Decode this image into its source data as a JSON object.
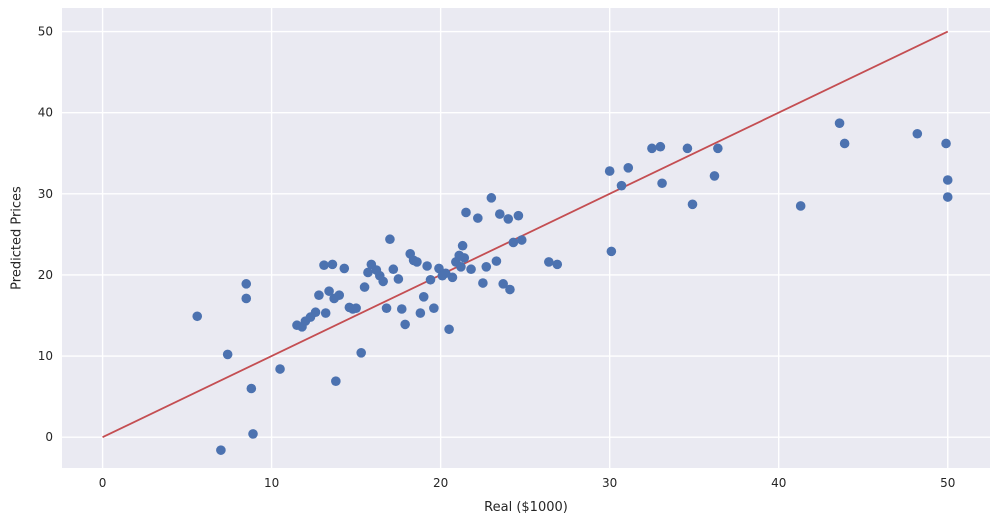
{
  "chart_data": {
    "type": "scatter",
    "title": "",
    "xlabel": "Real ($1000)",
    "ylabel": "Predicted Prices",
    "xlim": [
      -2.4,
      52.5
    ],
    "ylim": [
      -3.8,
      52.9
    ],
    "xticks": [
      0,
      10,
      20,
      30,
      40,
      50
    ],
    "yticks": [
      0,
      10,
      20,
      30,
      40,
      50
    ],
    "grid": true,
    "legend": "none",
    "plot_bg": "#eaeaf2",
    "grid_color": "#ffffff",
    "series": [
      {
        "name": "identity-line",
        "type": "line",
        "color": "#c44e52",
        "points": [
          [
            0,
            0
          ],
          [
            50,
            50
          ]
        ]
      },
      {
        "name": "predicted-vs-real",
        "type": "scatter",
        "color": "#4c72b0",
        "marker_radius": 4.8,
        "points": [
          [
            5.6,
            14.9
          ],
          [
            7.0,
            -1.6
          ],
          [
            7.4,
            10.2
          ],
          [
            8.5,
            18.9
          ],
          [
            8.5,
            17.1
          ],
          [
            8.8,
            6.0
          ],
          [
            8.9,
            0.4
          ],
          [
            10.5,
            8.4
          ],
          [
            11.5,
            13.8
          ],
          [
            11.8,
            13.6
          ],
          [
            12.0,
            14.3
          ],
          [
            12.3,
            14.8
          ],
          [
            12.6,
            15.4
          ],
          [
            12.8,
            17.5
          ],
          [
            13.1,
            21.2
          ],
          [
            13.2,
            15.3
          ],
          [
            13.4,
            18.0
          ],
          [
            13.6,
            21.3
          ],
          [
            13.7,
            17.1
          ],
          [
            13.8,
            6.9
          ],
          [
            14.0,
            17.5
          ],
          [
            14.3,
            20.8
          ],
          [
            14.6,
            16.0
          ],
          [
            14.8,
            15.8
          ],
          [
            15.0,
            15.9
          ],
          [
            15.3,
            10.4
          ],
          [
            15.5,
            18.5
          ],
          [
            15.7,
            20.3
          ],
          [
            15.9,
            21.3
          ],
          [
            16.2,
            20.6
          ],
          [
            16.4,
            19.9
          ],
          [
            16.6,
            19.2
          ],
          [
            16.8,
            15.9
          ],
          [
            17.0,
            24.4
          ],
          [
            17.2,
            20.7
          ],
          [
            17.5,
            19.5
          ],
          [
            17.7,
            15.8
          ],
          [
            17.9,
            13.9
          ],
          [
            18.2,
            22.6
          ],
          [
            18.4,
            21.8
          ],
          [
            18.6,
            21.6
          ],
          [
            18.8,
            15.3
          ],
          [
            19.0,
            17.3
          ],
          [
            19.2,
            21.1
          ],
          [
            19.4,
            19.4
          ],
          [
            19.6,
            15.9
          ],
          [
            19.9,
            20.8
          ],
          [
            20.1,
            19.9
          ],
          [
            20.3,
            20.2
          ],
          [
            20.5,
            13.3
          ],
          [
            20.7,
            19.7
          ],
          [
            20.9,
            21.6
          ],
          [
            21.1,
            22.4
          ],
          [
            21.2,
            21.0
          ],
          [
            21.3,
            23.6
          ],
          [
            21.4,
            22.1
          ],
          [
            21.5,
            27.7
          ],
          [
            21.8,
            20.7
          ],
          [
            22.2,
            27.0
          ],
          [
            22.5,
            19.0
          ],
          [
            22.7,
            21.0
          ],
          [
            23.0,
            29.5
          ],
          [
            23.3,
            21.7
          ],
          [
            23.5,
            27.5
          ],
          [
            23.7,
            18.9
          ],
          [
            24.0,
            26.9
          ],
          [
            24.1,
            18.2
          ],
          [
            24.3,
            24.0
          ],
          [
            24.6,
            27.3
          ],
          [
            24.8,
            24.3
          ],
          [
            26.4,
            21.6
          ],
          [
            26.9,
            21.3
          ],
          [
            30.0,
            32.8
          ],
          [
            30.1,
            22.9
          ],
          [
            30.7,
            31.0
          ],
          [
            31.1,
            33.2
          ],
          [
            32.5,
            35.6
          ],
          [
            33.0,
            35.8
          ],
          [
            33.1,
            31.3
          ],
          [
            34.6,
            35.6
          ],
          [
            34.9,
            28.7
          ],
          [
            36.2,
            32.2
          ],
          [
            36.4,
            35.6
          ],
          [
            41.3,
            28.5
          ],
          [
            43.6,
            38.7
          ],
          [
            43.9,
            36.2
          ],
          [
            48.2,
            37.4
          ],
          [
            49.9,
            36.2
          ],
          [
            50.0,
            31.7
          ],
          [
            50.0,
            29.6
          ]
        ]
      }
    ]
  }
}
